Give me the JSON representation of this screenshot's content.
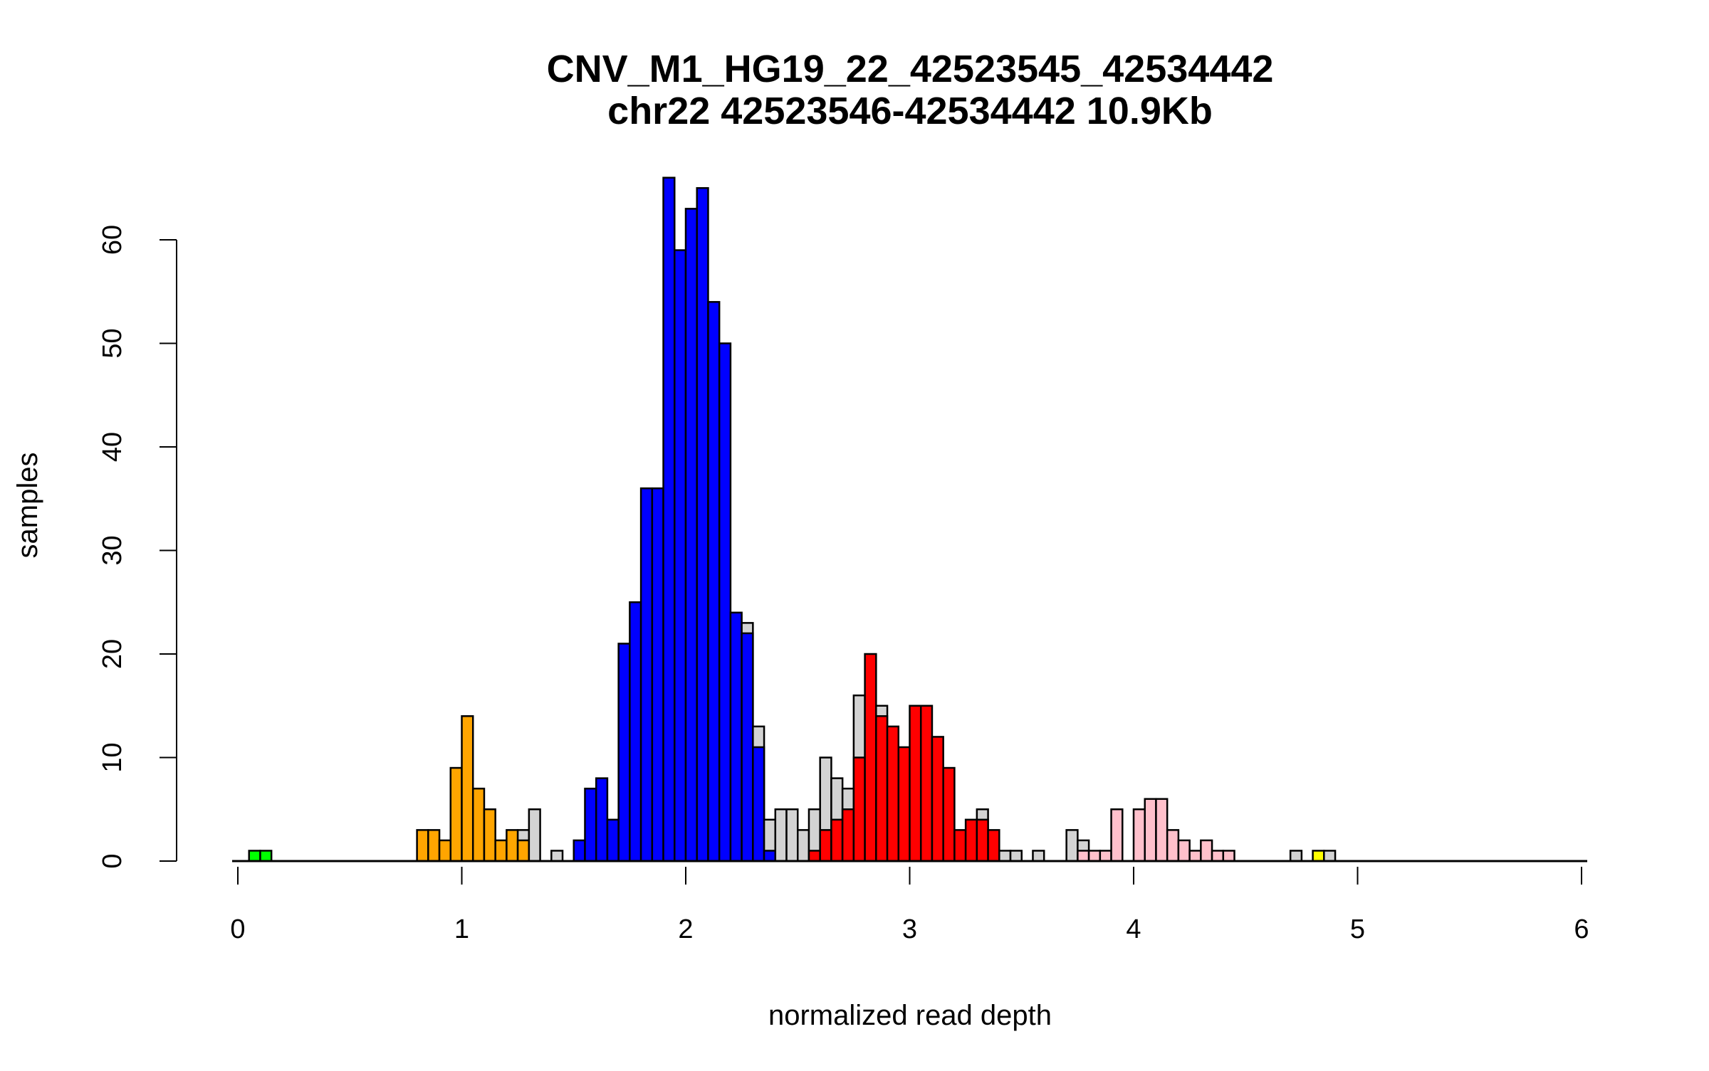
{
  "chart_data": {
    "type": "bar",
    "subtype": "stacked-histogram",
    "title": "CNV_M1_HG19_22_42523545_42534442",
    "subtitle": "chr22 42523546-42534442 10.9Kb",
    "xlabel": "normalized read depth",
    "ylabel": "samples",
    "xlim": [
      0,
      6
    ],
    "ylim": [
      0,
      66
    ],
    "xticks": [
      "0",
      "1",
      "2",
      "3",
      "4",
      "5",
      "6"
    ],
    "yticks": [
      "0",
      "10",
      "20",
      "30",
      "40",
      "50",
      "60"
    ],
    "bin_width": 0.05,
    "grid": false,
    "colors": {
      "green": "#00ff00",
      "orange": "#ffa500",
      "blue": "#0000ff",
      "red": "#ff0000",
      "pink": "#ffc0cb",
      "yellow": "#ffff00",
      "gray": "#d3d3d3"
    },
    "bins_fields": [
      "x_start",
      "total",
      "colored_count",
      "color"
    ],
    "bins": [
      [
        0.05,
        1,
        1,
        "green"
      ],
      [
        0.1,
        1,
        1,
        "green"
      ],
      [
        0.8,
        3,
        3,
        "orange"
      ],
      [
        0.85,
        3,
        3,
        "orange"
      ],
      [
        0.9,
        2,
        2,
        "orange"
      ],
      [
        0.95,
        9,
        9,
        "orange"
      ],
      [
        1.0,
        14,
        14,
        "orange"
      ],
      [
        1.05,
        7,
        7,
        "orange"
      ],
      [
        1.1,
        5,
        5,
        "orange"
      ],
      [
        1.15,
        2,
        2,
        "orange"
      ],
      [
        1.2,
        3,
        3,
        "orange"
      ],
      [
        1.25,
        3,
        2,
        "orange"
      ],
      [
        1.3,
        5,
        0,
        "gray"
      ],
      [
        1.4,
        1,
        0,
        "gray"
      ],
      [
        1.5,
        2,
        2,
        "blue"
      ],
      [
        1.55,
        7,
        7,
        "blue"
      ],
      [
        1.6,
        8,
        8,
        "blue"
      ],
      [
        1.65,
        4,
        4,
        "blue"
      ],
      [
        1.7,
        21,
        21,
        "blue"
      ],
      [
        1.75,
        25,
        25,
        "blue"
      ],
      [
        1.8,
        36,
        36,
        "blue"
      ],
      [
        1.85,
        36,
        36,
        "blue"
      ],
      [
        1.9,
        66,
        66,
        "blue"
      ],
      [
        1.95,
        59,
        59,
        "blue"
      ],
      [
        2.0,
        63,
        63,
        "blue"
      ],
      [
        2.05,
        65,
        65,
        "blue"
      ],
      [
        2.1,
        54,
        54,
        "blue"
      ],
      [
        2.15,
        50,
        50,
        "blue"
      ],
      [
        2.2,
        24,
        24,
        "blue"
      ],
      [
        2.25,
        23,
        22,
        "blue"
      ],
      [
        2.3,
        13,
        11,
        "blue"
      ],
      [
        2.35,
        4,
        1,
        "blue"
      ],
      [
        2.4,
        5,
        0,
        "gray"
      ],
      [
        2.45,
        5,
        0,
        "gray"
      ],
      [
        2.5,
        3,
        0,
        "gray"
      ],
      [
        2.55,
        5,
        1,
        "red"
      ],
      [
        2.6,
        10,
        3,
        "red"
      ],
      [
        2.65,
        8,
        4,
        "red"
      ],
      [
        2.7,
        7,
        5,
        "red"
      ],
      [
        2.75,
        16,
        10,
        "red"
      ],
      [
        2.8,
        20,
        20,
        "red"
      ],
      [
        2.85,
        15,
        14,
        "red"
      ],
      [
        2.9,
        13,
        13,
        "red"
      ],
      [
        2.95,
        11,
        11,
        "red"
      ],
      [
        3.0,
        15,
        15,
        "red"
      ],
      [
        3.05,
        15,
        15,
        "red"
      ],
      [
        3.1,
        12,
        12,
        "red"
      ],
      [
        3.15,
        9,
        9,
        "red"
      ],
      [
        3.2,
        3,
        3,
        "red"
      ],
      [
        3.25,
        4,
        4,
        "red"
      ],
      [
        3.3,
        5,
        4,
        "red"
      ],
      [
        3.35,
        3,
        3,
        "red"
      ],
      [
        3.4,
        1,
        0,
        "gray"
      ],
      [
        3.45,
        1,
        0,
        "gray"
      ],
      [
        3.55,
        1,
        0,
        "gray"
      ],
      [
        3.7,
        3,
        0,
        "gray"
      ],
      [
        3.75,
        2,
        1,
        "pink"
      ],
      [
        3.8,
        1,
        1,
        "pink"
      ],
      [
        3.85,
        1,
        1,
        "pink"
      ],
      [
        3.9,
        5,
        5,
        "pink"
      ],
      [
        4.0,
        5,
        5,
        "pink"
      ],
      [
        4.05,
        6,
        6,
        "pink"
      ],
      [
        4.1,
        6,
        6,
        "pink"
      ],
      [
        4.15,
        3,
        3,
        "pink"
      ],
      [
        4.2,
        2,
        2,
        "pink"
      ],
      [
        4.25,
        1,
        1,
        "pink"
      ],
      [
        4.3,
        2,
        2,
        "pink"
      ],
      [
        4.35,
        1,
        1,
        "pink"
      ],
      [
        4.4,
        1,
        1,
        "pink"
      ],
      [
        4.7,
        1,
        0,
        "gray"
      ],
      [
        4.8,
        1,
        1,
        "yellow"
      ],
      [
        4.85,
        1,
        0,
        "gray"
      ]
    ]
  }
}
